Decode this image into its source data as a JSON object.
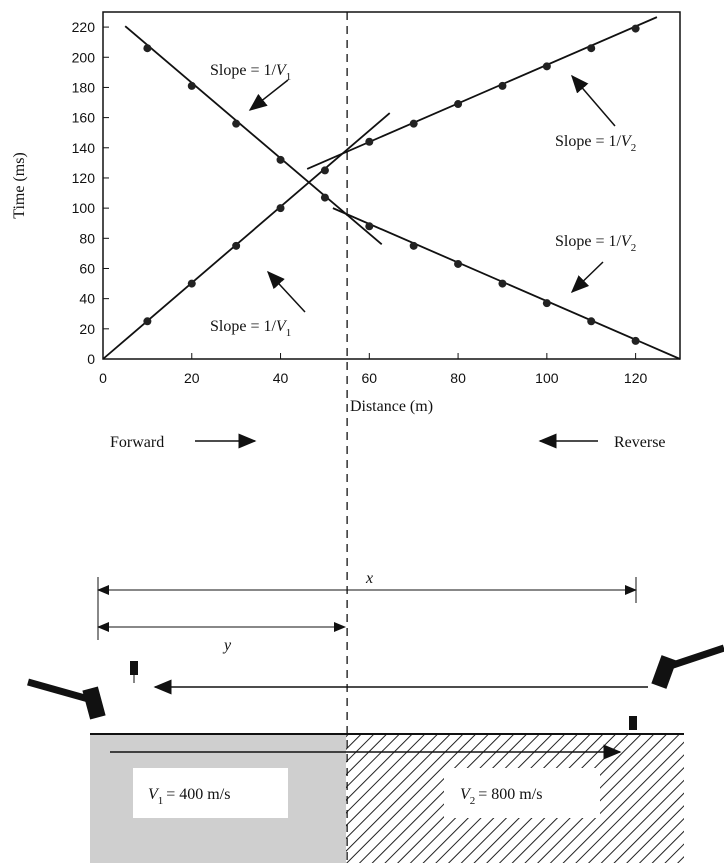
{
  "chart_data": {
    "type": "scatter",
    "x_label": "Distance (m)",
    "y_label": "Time (ms)",
    "xlim": [
      0,
      130
    ],
    "ylim": [
      0,
      230
    ],
    "xticks": [
      0,
      20,
      40,
      60,
      80,
      100,
      120
    ],
    "yticks": [
      0,
      20,
      40,
      60,
      80,
      100,
      120,
      140,
      160,
      180,
      200,
      220
    ],
    "x": [
      10,
      20,
      30,
      40,
      50,
      60,
      70,
      80,
      90,
      100,
      110,
      120
    ],
    "series": [
      {
        "color": "#222",
        "values": [
          25,
          50,
          75,
          100,
          125,
          144,
          156,
          169,
          181,
          194,
          206,
          219
        ]
      },
      {
        "color": "#222",
        "values": [
          206,
          181,
          156,
          132,
          107,
          88,
          75,
          63,
          50,
          37,
          25,
          12
        ]
      }
    ],
    "lines": [
      {
        "x": [
          0,
          64.6
        ],
        "values": [
          0,
          163
        ]
      },
      {
        "x": [
          46,
          124.8
        ],
        "values": [
          126,
          226.6
        ]
      },
      {
        "x": [
          5,
          62.8
        ],
        "values": [
          220.6,
          76
        ]
      },
      {
        "x": [
          51.8,
          130
        ],
        "values": [
          100,
          0
        ]
      }
    ],
    "crossover_distance": 55,
    "annotations": [
      {
        "prefix": "Slope = 1/",
        "var": "V",
        "sub": "1"
      },
      {
        "prefix": "Slope = 1/",
        "var": "V",
        "sub": "2"
      },
      {
        "prefix": "Slope = 1/",
        "var": "V",
        "sub": "2"
      },
      {
        "prefix": "Slope = 1/",
        "var": "V",
        "sub": "1"
      }
    ]
  },
  "diagram": {
    "forward": "Forward",
    "reverse": "Reverse",
    "x_label": "x",
    "y_label": "y",
    "layers": [
      {
        "var": "V",
        "sub": "1",
        "suffix": "= 400 m/s"
      },
      {
        "var": "V",
        "sub": "2",
        "suffix": "= 800 m/s"
      }
    ]
  }
}
